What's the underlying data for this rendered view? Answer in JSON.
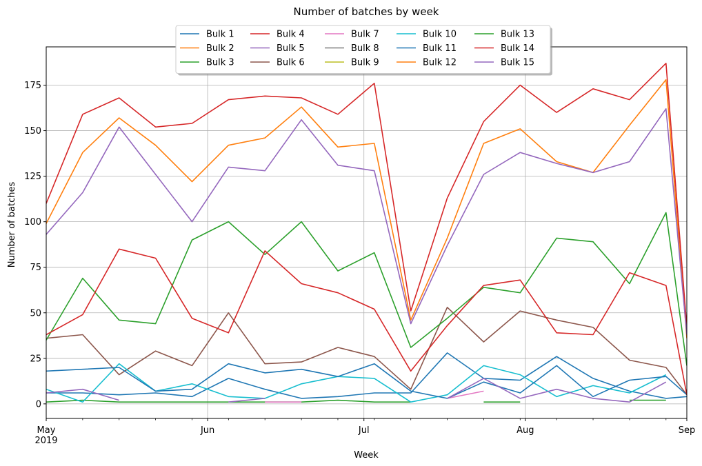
{
  "chart_data": {
    "type": "line",
    "title": "Number of batches by week",
    "xlabel": "Week",
    "ylabel": "Number of batches",
    "xlim": [
      "2019-05-01",
      "2019-09-01"
    ],
    "ylim": [
      -8,
      196
    ],
    "grid": true,
    "legend_position": "top-center",
    "legend_columns": 5,
    "x_ticks": [
      {
        "date": "2019-05-01",
        "label": "May",
        "sublabel": "2019"
      },
      {
        "date": "2019-06-01",
        "label": "Jun"
      },
      {
        "date": "2019-07-01",
        "label": "Jul"
      },
      {
        "date": "2019-08-01",
        "label": "Aug"
      },
      {
        "date": "2019-09-01",
        "label": "Sep"
      }
    ],
    "y_ticks": [
      0,
      25,
      50,
      75,
      100,
      125,
      150,
      175
    ],
    "x": [
      "2019-05-01",
      "2019-05-08",
      "2019-05-15",
      "2019-05-22",
      "2019-05-29",
      "2019-06-05",
      "2019-06-12",
      "2019-06-19",
      "2019-06-26",
      "2019-07-03",
      "2019-07-10",
      "2019-07-17",
      "2019-07-24",
      "2019-07-31",
      "2019-08-07",
      "2019-08-14",
      "2019-08-21",
      "2019-08-28",
      "2019-09-01"
    ],
    "series": [
      {
        "name": "Bulk 1",
        "color": "#1f77b4",
        "values": [
          6,
          6,
          5,
          6,
          4,
          14,
          8,
          3,
          4,
          6,
          6,
          28,
          14,
          13,
          26,
          14,
          7,
          3,
          4
        ]
      },
      {
        "name": "Bulk 2",
        "color": "#ff7f0e",
        "values": [
          99,
          138,
          157,
          142,
          122,
          142,
          146,
          163,
          141,
          143,
          46,
          91,
          143,
          151,
          133,
          127,
          153,
          178,
          36
        ]
      },
      {
        "name": "Bulk 3",
        "color": "#2ca02c",
        "values": [
          1,
          2,
          1,
          1,
          1,
          1,
          1,
          1,
          2,
          1,
          1,
          null,
          1,
          1,
          null,
          null,
          2,
          2,
          null
        ]
      },
      {
        "name": "Bulk 4",
        "color": "#d62728",
        "values": [
          110,
          159,
          168,
          152,
          154,
          167,
          169,
          168,
          159,
          176,
          51,
          113,
          155,
          175,
          160,
          173,
          167,
          187,
          42
        ]
      },
      {
        "name": "Bulk 5",
        "color": "#9467bd",
        "values": [
          93,
          116,
          152,
          126,
          100,
          130,
          128,
          156,
          131,
          128,
          44,
          87,
          126,
          138,
          132,
          127,
          133,
          162,
          38
        ]
      },
      {
        "name": "Bulk 6",
        "color": "#8c564b",
        "values": [
          36,
          38,
          16,
          29,
          21,
          50,
          22,
          23,
          31,
          26,
          8,
          53,
          34,
          51,
          46,
          42,
          24,
          20,
          5
        ]
      },
      {
        "name": "Bulk 7",
        "color": "#e377c2",
        "values": [
          null,
          1,
          null,
          null,
          null,
          null,
          1,
          1,
          null,
          null,
          null,
          3,
          7,
          null,
          null,
          null,
          null,
          null,
          null
        ]
      },
      {
        "name": "Bulk 8",
        "color": "#7f7f7f",
        "values": [
          null,
          null,
          null,
          null,
          null,
          null,
          null,
          null,
          null,
          null,
          null,
          null,
          null,
          null,
          null,
          null,
          null,
          null,
          null
        ]
      },
      {
        "name": "Bulk 9",
        "color": "#bcbd22",
        "values": [
          null,
          null,
          null,
          null,
          null,
          null,
          null,
          null,
          null,
          null,
          null,
          null,
          null,
          null,
          null,
          null,
          null,
          null,
          null
        ]
      },
      {
        "name": "Bulk 10",
        "color": "#17becf",
        "values": [
          8,
          1,
          22,
          7,
          11,
          4,
          3,
          11,
          15,
          14,
          1,
          5,
          21,
          16,
          4,
          10,
          6,
          16,
          null
        ]
      },
      {
        "name": "Bulk 11",
        "color": "#1f77b4",
        "values": [
          18,
          19,
          20,
          7,
          8,
          22,
          17,
          19,
          15,
          22,
          7,
          3,
          12,
          6,
          21,
          4,
          13,
          15,
          5
        ]
      },
      {
        "name": "Bulk 12",
        "color": "#ff7f0e",
        "values": [
          null,
          null,
          null,
          null,
          null,
          null,
          null,
          null,
          null,
          null,
          null,
          null,
          null,
          null,
          null,
          null,
          null,
          null,
          null
        ]
      },
      {
        "name": "Bulk 13",
        "color": "#2ca02c",
        "values": [
          35,
          69,
          46,
          44,
          90,
          100,
          82,
          100,
          73,
          83,
          31,
          47,
          64,
          61,
          91,
          89,
          66,
          105,
          21
        ]
      },
      {
        "name": "Bulk 14",
        "color": "#d62728",
        "values": [
          38,
          49,
          85,
          80,
          47,
          39,
          84,
          66,
          61,
          52,
          18,
          43,
          65,
          68,
          39,
          38,
          72,
          65,
          5
        ]
      },
      {
        "name": "Bulk 15",
        "color": "#9467bd",
        "values": [
          6,
          8,
          2,
          null,
          null,
          1,
          3,
          null,
          null,
          null,
          null,
          3,
          14,
          3,
          8,
          3,
          1,
          12,
          null
        ]
      }
    ]
  }
}
